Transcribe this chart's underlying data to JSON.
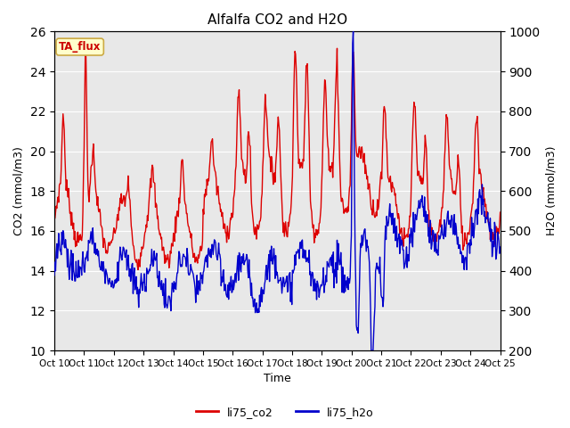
{
  "title": "Alfalfa CO2 and H2O",
  "xlabel": "Time",
  "ylabel_left": "CO2 (mmol/m3)",
  "ylabel_right": "H2O (mmol/m3)",
  "ylim_left": [
    10,
    26
  ],
  "ylim_right": [
    200,
    1000
  ],
  "yticks_left": [
    10,
    12,
    14,
    16,
    18,
    20,
    22,
    24,
    26
  ],
  "yticks_right": [
    200,
    300,
    400,
    500,
    600,
    700,
    800,
    900,
    1000
  ],
  "xtick_labels": [
    "Oct 10",
    "Oct 11",
    "Oct 12",
    "Oct 13",
    "Oct 14",
    "Oct 15",
    "Oct 16",
    "Oct 17",
    "Oct 18",
    "Oct 19",
    "Oct 20",
    "Oct 21",
    "Oct 22",
    "Oct 23",
    "Oct 24",
    "Oct 25"
  ],
  "annotation_text": "TA_flux",
  "annotation_bg": "#ffffcc",
  "annotation_border": "#ccaa44",
  "annotation_text_color": "#cc0000",
  "color_co2": "#dd0000",
  "color_h2o": "#0000cc",
  "legend_label_co2": "li75_co2",
  "legend_label_h2o": "li75_h2o",
  "background_color": "#e8e8e8",
  "linewidth": 1.0
}
